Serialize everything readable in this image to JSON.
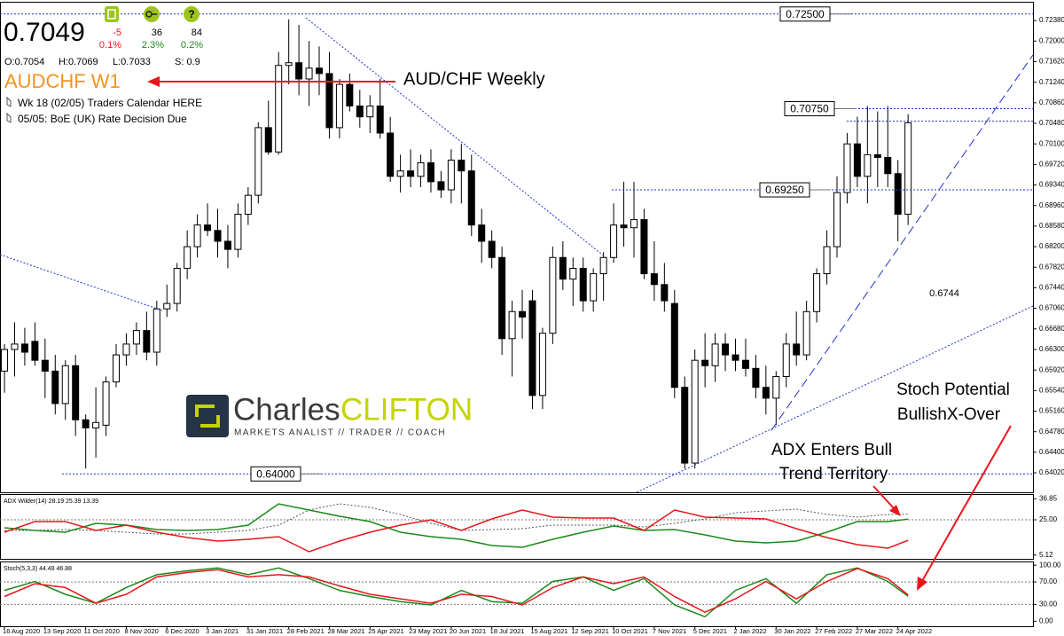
{
  "header": {
    "price": "0.7049",
    "stats": [
      {
        "change": "-5",
        "pct": "0.1%"
      },
      {
        "change": "36",
        "pct": "2.3%"
      },
      {
        "change": "84",
        "pct": "0.2%"
      }
    ],
    "ohlc": [
      "O:0.7054",
      "H:0.7069",
      "L:0.7033",
      "S: 0.9"
    ],
    "symbol": "AUDCHF W1",
    "notes": [
      "Wk 18 (02/05) Traders Calendar HERE",
      "05/05: BoE (UK) Rate Decision Due"
    ]
  },
  "logo": {
    "name_1": "Charles",
    "name_2": "CLIFTON",
    "tagline": "MARKETS ANALIST // TRADER // COACH"
  },
  "annotations": {
    "pair": "AUD/CHF Weekly",
    "mid_level": "0.6744",
    "stoch_1": "Stoch Potential",
    "stoch_2": "BullishX-Over",
    "adx_1": "ADX Enters Bull",
    "adx_2": "Trend Territory"
  },
  "chart_data": [
    {
      "type": "candlestick",
      "xlim": [
        -0.44,
        101.3
      ],
      "xticks": [
        {
          "value": 0,
          "label": "16 Aug 2020"
        },
        {
          "value": 4,
          "label": "13 Sep 2020"
        },
        {
          "value": 8,
          "label": "11 Oct 2020"
        },
        {
          "value": 12,
          "label": "8 Nov 2020"
        },
        {
          "value": 16,
          "label": "6 Dec 2020"
        },
        {
          "value": 20,
          "label": "3 Jan 2021"
        },
        {
          "value": 24,
          "label": "31 Jan 2021"
        },
        {
          "value": 28,
          "label": "28 Feb 2021"
        },
        {
          "value": 32,
          "label": "28 Mar 2021"
        },
        {
          "value": 36,
          "label": "25 Apr 2021"
        },
        {
          "value": 40,
          "label": "23 May 2021"
        },
        {
          "value": 44,
          "label": "20 Jun 2021"
        },
        {
          "value": 48,
          "label": "18 Jul 2021"
        },
        {
          "value": 52,
          "label": "15 Aug 2021"
        },
        {
          "value": 56,
          "label": "12 Sep 2021"
        },
        {
          "value": 60,
          "label": "10 Oct 2021"
        },
        {
          "value": 64,
          "label": "7 Nov 2021"
        },
        {
          "value": 68,
          "label": "5 Dec 2021"
        },
        {
          "value": 72,
          "label": "2 Jan 2022"
        },
        {
          "value": 76,
          "label": "30 Jan 2022"
        },
        {
          "value": 80,
          "label": "27 Feb 2022"
        },
        {
          "value": 84,
          "label": "27 Mar 2022"
        },
        {
          "value": 88,
          "label": "24 Apr 2022"
        }
      ],
      "ylim": [
        0.6366,
        0.7271
      ],
      "yticks": [
        {
          "value": 0.7238,
          "label": "0.72380"
        },
        {
          "value": 0.72,
          "label": "0.72000"
        },
        {
          "value": 0.7162,
          "label": "0.71620"
        },
        {
          "value": 0.7124,
          "label": "0.71240"
        },
        {
          "value": 0.7086,
          "label": "0.70860"
        },
        {
          "value": 0.7048,
          "label": "0.70480"
        },
        {
          "value": 0.701,
          "label": "0.70100"
        },
        {
          "value": 0.6972,
          "label": "0.69720"
        },
        {
          "value": 0.6934,
          "label": "0.69340"
        },
        {
          "value": 0.6896,
          "label": "0.68960"
        },
        {
          "value": 0.6858,
          "label": "0.68580"
        },
        {
          "value": 0.682,
          "label": "0.68200"
        },
        {
          "value": 0.6782,
          "label": "0.67820"
        },
        {
          "value": 0.6744,
          "label": "0.67440"
        },
        {
          "value": 0.6706,
          "label": "0.67060"
        },
        {
          "value": 0.6668,
          "label": "0.66680"
        },
        {
          "value": 0.663,
          "label": "0.66300"
        },
        {
          "value": 0.6592,
          "label": "0.65920"
        },
        {
          "value": 0.6554,
          "label": "0.65540"
        },
        {
          "value": 0.6516,
          "label": "0.65160"
        },
        {
          "value": 0.6478,
          "label": "0.64780"
        },
        {
          "value": 0.644,
          "label": "0.64400"
        },
        {
          "value": 0.6402,
          "label": "0.64020"
        }
      ],
      "levels": [
        {
          "value": 0.725,
          "label": "0.72500"
        },
        {
          "value": 0.7075,
          "label": "0.70750"
        },
        {
          "value": 0.6925,
          "label": "0.69250"
        },
        {
          "value": 0.64,
          "label": "0.64000"
        },
        0.7052
      ],
      "up_color": "#ffffff",
      "down_color": "#000000",
      "open": [
        0.659,
        0.663,
        0.664,
        0.6645,
        0.661,
        0.659,
        0.653,
        0.66,
        0.65,
        0.6485,
        0.649,
        0.657,
        0.662,
        0.664,
        0.6665,
        0.6625,
        0.6705,
        0.6715,
        0.678,
        0.682,
        0.686,
        0.685,
        0.683,
        0.6815,
        0.688,
        0.6915,
        0.704,
        0.6995,
        0.7155,
        0.716,
        0.713,
        0.715,
        0.714,
        0.704,
        0.712,
        0.708,
        0.706,
        0.708,
        0.703,
        0.695,
        0.696,
        0.695,
        0.6975,
        0.694,
        0.6925,
        0.698,
        0.696,
        0.686,
        0.683,
        0.68,
        0.665,
        0.67,
        0.672,
        0.6545,
        0.666,
        0.68,
        0.676,
        0.678,
        0.672,
        0.677,
        0.68,
        0.686,
        0.6855,
        0.687,
        0.677,
        0.675,
        0.6715,
        0.656,
        0.642,
        0.661,
        0.66,
        0.664,
        0.662,
        0.661,
        0.6595,
        0.656,
        0.654,
        0.658,
        0.664,
        0.662,
        0.67,
        0.677,
        0.682,
        0.692,
        0.701,
        0.695,
        0.699,
        0.6985,
        0.6955,
        0.688
      ],
      "high": [
        0.664,
        0.668,
        0.667,
        0.668,
        0.665,
        0.662,
        0.661,
        0.662,
        0.651,
        0.656,
        0.658,
        0.664,
        0.666,
        0.668,
        0.67,
        0.672,
        0.675,
        0.679,
        0.685,
        0.688,
        0.69,
        0.689,
        0.686,
        0.69,
        0.693,
        0.705,
        0.709,
        0.718,
        0.724,
        0.723,
        0.72,
        0.719,
        0.718,
        0.713,
        0.714,
        0.711,
        0.71,
        0.713,
        0.706,
        0.699,
        0.7,
        0.699,
        0.7,
        0.696,
        0.7,
        0.701,
        0.699,
        0.689,
        0.685,
        0.682,
        0.672,
        0.674,
        0.674,
        0.667,
        0.682,
        0.683,
        0.68,
        0.68,
        0.678,
        0.681,
        0.69,
        0.694,
        0.694,
        0.689,
        0.683,
        0.679,
        0.674,
        0.658,
        0.663,
        0.666,
        0.666,
        0.666,
        0.665,
        0.665,
        0.662,
        0.66,
        0.659,
        0.666,
        0.67,
        0.672,
        0.678,
        0.685,
        0.695,
        0.703,
        0.706,
        0.708,
        0.707,
        0.708,
        0.698,
        0.7065
      ],
      "low": [
        0.655,
        0.658,
        0.66,
        0.66,
        0.654,
        0.651,
        0.65,
        0.647,
        0.641,
        0.643,
        0.647,
        0.656,
        0.66,
        0.662,
        0.661,
        0.66,
        0.669,
        0.67,
        0.676,
        0.68,
        0.684,
        0.68,
        0.678,
        0.68,
        0.686,
        0.69,
        0.699,
        0.699,
        0.712,
        0.71,
        0.708,
        0.71,
        0.702,
        0.702,
        0.707,
        0.704,
        0.703,
        0.702,
        0.694,
        0.692,
        0.693,
        0.693,
        0.692,
        0.691,
        0.69,
        0.69,
        0.684,
        0.679,
        0.678,
        0.662,
        0.658,
        0.665,
        0.652,
        0.652,
        0.664,
        0.674,
        0.671,
        0.67,
        0.67,
        0.672,
        0.679,
        0.682,
        0.68,
        0.676,
        0.672,
        0.67,
        0.654,
        0.641,
        0.641,
        0.656,
        0.657,
        0.659,
        0.659,
        0.658,
        0.654,
        0.651,
        0.649,
        0.656,
        0.66,
        0.661,
        0.668,
        0.675,
        0.68,
        0.69,
        0.693,
        0.69,
        0.693,
        0.693,
        0.683,
        0.686
      ],
      "close": [
        0.663,
        0.664,
        0.6625,
        0.661,
        0.659,
        0.653,
        0.66,
        0.65,
        0.6485,
        0.6495,
        0.657,
        0.662,
        0.664,
        0.6665,
        0.6625,
        0.6705,
        0.6715,
        0.678,
        0.682,
        0.686,
        0.685,
        0.683,
        0.6815,
        0.688,
        0.6915,
        0.704,
        0.6995,
        0.7155,
        0.716,
        0.713,
        0.715,
        0.714,
        0.704,
        0.712,
        0.708,
        0.706,
        0.708,
        0.703,
        0.695,
        0.696,
        0.695,
        0.6975,
        0.694,
        0.6925,
        0.698,
        0.696,
        0.686,
        0.683,
        0.68,
        0.665,
        0.67,
        0.669,
        0.6545,
        0.666,
        0.68,
        0.676,
        0.678,
        0.672,
        0.677,
        0.68,
        0.686,
        0.6855,
        0.687,
        0.677,
        0.675,
        0.672,
        0.656,
        0.642,
        0.661,
        0.66,
        0.664,
        0.662,
        0.661,
        0.6595,
        0.656,
        0.654,
        0.658,
        0.664,
        0.662,
        0.67,
        0.677,
        0.682,
        0.692,
        0.701,
        0.695,
        0.699,
        0.6985,
        0.6955,
        0.688,
        0.7049
      ]
    },
    {
      "type": "line",
      "title": "ADX Wilder(14) 28.19 25.39 13.39",
      "xlim": [
        -0.44,
        101.3
      ],
      "x": [
        0,
        3,
        6,
        9,
        12,
        15,
        18,
        21,
        24,
        27,
        30,
        33,
        36,
        39,
        42,
        45,
        48,
        51,
        54,
        57,
        60,
        63,
        66,
        69,
        72,
        75,
        78,
        81,
        84,
        87,
        89
      ],
      "ylim": [
        3,
        39
      ],
      "yticks": [
        36.85,
        {
          "value": 25,
          "label": "25.00"
        },
        5.12
      ],
      "levels": [
        25
      ],
      "series": [
        {
          "color": "#555555",
          "style": "dotted",
          "values": [
            19,
            19,
            19.5,
            19,
            18,
            17,
            17,
            18,
            19,
            22,
            30.5,
            34,
            32,
            28,
            23,
            19,
            19.5,
            20,
            22,
            22,
            22,
            21,
            23,
            25.5,
            29,
            30,
            31,
            28,
            26.5,
            28,
            28.19
          ]
        },
        {
          "color": "#1b8a1b",
          "style": "solid",
          "values": [
            20.5,
            19,
            18,
            23,
            22,
            19.5,
            19,
            19.5,
            22,
            34,
            30.5,
            27,
            24,
            18,
            15.5,
            14,
            10.5,
            9.5,
            14,
            18,
            21.5,
            19,
            19.5,
            16.5,
            13,
            12,
            13,
            18,
            24,
            24,
            25.39
          ]
        },
        {
          "color": "#e8161b",
          "style": "solid",
          "values": [
            18,
            24,
            24,
            19,
            22,
            18,
            15,
            13,
            14,
            15.5,
            7,
            13,
            18,
            22,
            25,
            19,
            25.5,
            30.5,
            26.5,
            26,
            26,
            19,
            30.5,
            26.5,
            26,
            25.5,
            20,
            15,
            11,
            9,
            13.39
          ]
        }
      ]
    },
    {
      "type": "line",
      "title": "Stoch(5,3,3) 44.48 46.88",
      "xlim": [
        -0.44,
        101.3
      ],
      "x": [
        0,
        3,
        6,
        9,
        12,
        15,
        18,
        21,
        24,
        27,
        30,
        33,
        36,
        39,
        42,
        45,
        48,
        51,
        54,
        57,
        60,
        63,
        66,
        69,
        72,
        75,
        78,
        81,
        84,
        87,
        89
      ],
      "ylim": [
        -9,
        105
      ],
      "yticks": [
        {
          "value": 100,
          "label": "100.00"
        },
        {
          "value": 70,
          "label": "70.00"
        },
        {
          "value": 30,
          "label": "30.00"
        },
        {
          "value": 0,
          "label": "0.00"
        }
      ],
      "levels": [
        70,
        30
      ],
      "series": [
        {
          "color": "#1b8a1b",
          "style": "solid",
          "values": [
            55,
            71,
            48,
            32,
            60,
            83,
            90,
            95,
            83,
            95,
            76,
            55,
            44,
            35,
            29,
            55,
            35,
            32,
            71,
            79,
            55,
            76,
            29,
            8,
            55,
            76,
            32,
            83,
            95,
            71,
            44.48
          ]
        },
        {
          "color": "#e8161b",
          "style": "solid",
          "values": [
            44,
            67,
            60,
            32,
            48,
            79,
            87,
            92,
            79,
            83,
            79,
            63,
            48,
            40,
            32,
            48,
            44,
            29,
            60,
            79,
            67,
            79,
            44,
            16,
            40,
            71,
            40,
            71,
            94,
            76,
            46.88
          ]
        }
      ]
    }
  ]
}
